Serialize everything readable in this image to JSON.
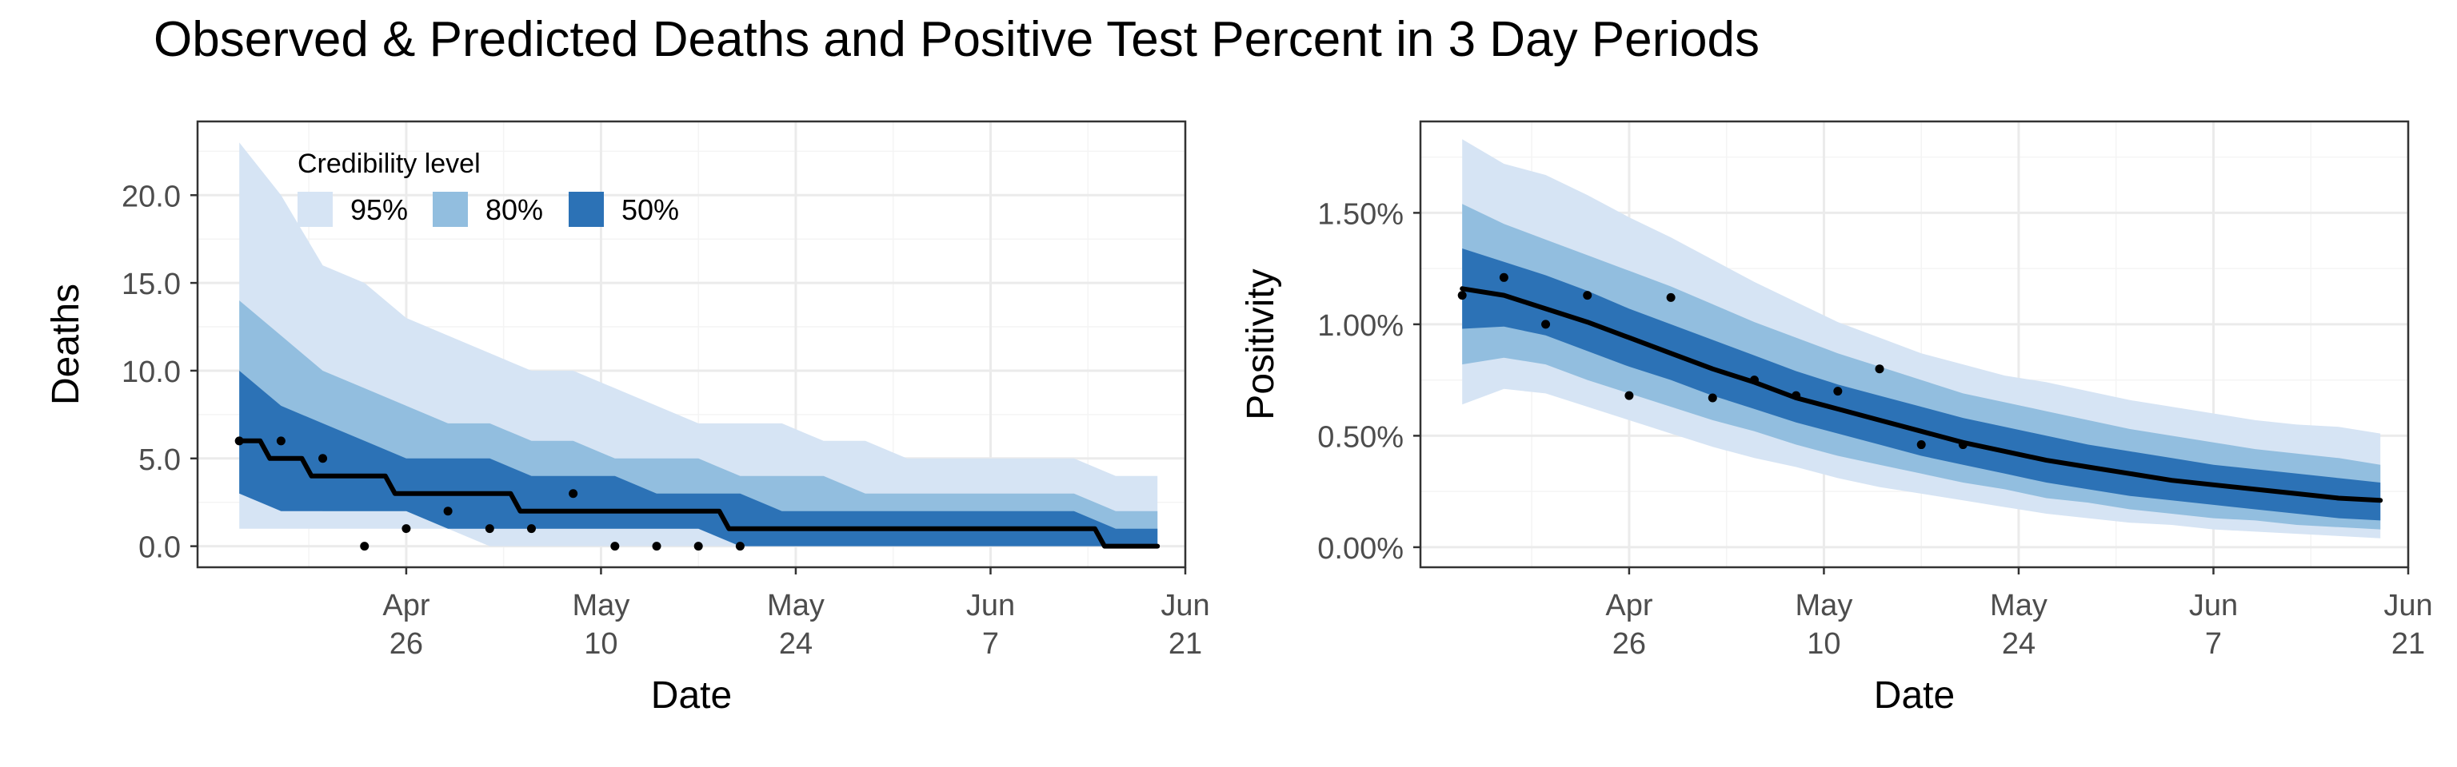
{
  "title": "Observed & Predicted Deaths and Positive Test Percent in 3 Day Periods",
  "colors": {
    "band95": "#d6e4f4",
    "band80": "#92bedf",
    "band50": "#2c72b6",
    "median": "#000000",
    "points": "#000000",
    "grid_major": "#ebebeb",
    "grid_minor": "#f4f4f4",
    "axis_text": "#4d4d4d"
  },
  "chart_data": [
    {
      "type": "area",
      "ylabel": "Deaths",
      "xlabel": "Date",
      "x_ticks": [
        {
          "date": "2020-04-26",
          "label_top": "Apr",
          "label_bottom": "26"
        },
        {
          "date": "2020-05-10",
          "label_top": "May",
          "label_bottom": "10"
        },
        {
          "date": "2020-05-24",
          "label_top": "May",
          "label_bottom": "24"
        },
        {
          "date": "2020-06-07",
          "label_top": "Jun",
          "label_bottom": "7"
        },
        {
          "date": "2020-06-21",
          "label_top": "Jun",
          "label_bottom": "21"
        }
      ],
      "xlim": [
        "2020-04-11",
        "2020-06-21"
      ],
      "ylim": [
        -1.2,
        24.2
      ],
      "y_ticks": [
        0,
        5,
        10,
        15,
        20
      ],
      "y_tick_labels": [
        "0.0",
        "5.0",
        "10.0",
        "15.0",
        "20.0"
      ],
      "legend": {
        "title": "Credibility level",
        "position": "top-left",
        "items": [
          {
            "label": "95%",
            "color_key": "band95"
          },
          {
            "label": "80%",
            "color_key": "band80"
          },
          {
            "label": "50%",
            "color_key": "band50"
          }
        ]
      },
      "bands_x": [
        "2020-04-14",
        "2020-04-17",
        "2020-04-20",
        "2020-04-23",
        "2020-04-26",
        "2020-04-29",
        "2020-05-02",
        "2020-05-05",
        "2020-05-08",
        "2020-05-11",
        "2020-05-14",
        "2020-05-17",
        "2020-05-20",
        "2020-05-23",
        "2020-05-26",
        "2020-05-29",
        "2020-06-01",
        "2020-06-04",
        "2020-06-07",
        "2020-06-10",
        "2020-06-13",
        "2020-06-16",
        "2020-06-19"
      ],
      "band95": {
        "lower": [
          1,
          1,
          1,
          1,
          1,
          1,
          0,
          0,
          0,
          0,
          0,
          0,
          0,
          0,
          0,
          0,
          0,
          0,
          0,
          0,
          0,
          0,
          0
        ],
        "upper": [
          23,
          20,
          16,
          15,
          13,
          12,
          11,
          10,
          10,
          9,
          8,
          7,
          7,
          7,
          6,
          6,
          5,
          5,
          5,
          5,
          5,
          4,
          4
        ]
      },
      "band80": {
        "lower": [
          3,
          3,
          2,
          2,
          2,
          1,
          1,
          1,
          1,
          1,
          1,
          1,
          0,
          0,
          0,
          0,
          0,
          0,
          0,
          0,
          0,
          0,
          0
        ],
        "upper": [
          14,
          12,
          10,
          9,
          8,
          7,
          7,
          6,
          6,
          5,
          5,
          5,
          4,
          4,
          4,
          3,
          3,
          3,
          3,
          3,
          3,
          2,
          2
        ]
      },
      "band50": {
        "lower": [
          3,
          2,
          2,
          2,
          2,
          1,
          1,
          1,
          1,
          1,
          1,
          1,
          0,
          0,
          0,
          0,
          0,
          0,
          0,
          0,
          0,
          0,
          0
        ],
        "upper": [
          10,
          8,
          7,
          6,
          5,
          5,
          5,
          4,
          4,
          4,
          3,
          3,
          3,
          2,
          2,
          2,
          2,
          2,
          2,
          2,
          2,
          1,
          1
        ]
      },
      "median": {
        "x": [
          "2020-04-14",
          "2020-04-17",
          "2020-04-20",
          "2020-04-23",
          "2020-04-26",
          "2020-04-29",
          "2020-05-02",
          "2020-05-05",
          "2020-05-08",
          "2020-05-11",
          "2020-05-14",
          "2020-05-17",
          "2020-05-20",
          "2020-05-23",
          "2020-05-26",
          "2020-05-29",
          "2020-06-01",
          "2020-06-04",
          "2020-06-07",
          "2020-06-10",
          "2020-06-13",
          "2020-06-16",
          "2020-06-19"
        ],
        "y": [
          6,
          5,
          4,
          4,
          3,
          3,
          3,
          2,
          2,
          2,
          2,
          2,
          1,
          1,
          1,
          1,
          1,
          1,
          1,
          1,
          1,
          0,
          0
        ],
        "step": true
      },
      "observed": {
        "x": [
          "2020-04-14",
          "2020-04-17",
          "2020-04-20",
          "2020-04-23",
          "2020-04-26",
          "2020-04-29",
          "2020-05-02",
          "2020-05-05",
          "2020-05-08",
          "2020-05-11",
          "2020-05-14",
          "2020-05-17",
          "2020-05-20"
        ],
        "y": [
          6,
          6,
          5,
          0,
          1,
          2,
          1,
          1,
          3,
          0,
          0,
          0,
          0
        ]
      }
    },
    {
      "type": "area",
      "ylabel": "Positivity",
      "xlabel": "Date",
      "x_ticks": [
        {
          "date": "2020-04-26",
          "label_top": "Apr",
          "label_bottom": "26"
        },
        {
          "date": "2020-05-10",
          "label_top": "May",
          "label_bottom": "10"
        },
        {
          "date": "2020-05-24",
          "label_top": "May",
          "label_bottom": "24"
        },
        {
          "date": "2020-06-07",
          "label_top": "Jun",
          "label_bottom": "7"
        },
        {
          "date": "2020-06-21",
          "label_top": "Jun",
          "label_bottom": "21"
        }
      ],
      "xlim": [
        "2020-04-11",
        "2020-06-21"
      ],
      "ylim": [
        -0.0009,
        0.0191
      ],
      "y_ticks": [
        0,
        0.005,
        0.01,
        0.015
      ],
      "y_tick_labels": [
        "0.00%",
        "0.50%",
        "1.00%",
        "1.50%"
      ],
      "bands_x": [
        "2020-04-14",
        "2020-04-17",
        "2020-04-20",
        "2020-04-23",
        "2020-04-26",
        "2020-04-29",
        "2020-05-02",
        "2020-05-05",
        "2020-05-08",
        "2020-05-11",
        "2020-05-14",
        "2020-05-17",
        "2020-05-20",
        "2020-05-23",
        "2020-05-26",
        "2020-05-29",
        "2020-06-01",
        "2020-06-04",
        "2020-06-07",
        "2020-06-10",
        "2020-06-13",
        "2020-06-16",
        "2020-06-19"
      ],
      "band95": {
        "lower": [
          0.0064,
          0.0071,
          0.0069,
          0.0063,
          0.0057,
          0.0051,
          0.0045,
          0.004,
          0.0036,
          0.0031,
          0.0027,
          0.0024,
          0.0021,
          0.0018,
          0.0015,
          0.0013,
          0.0011,
          0.001,
          0.0008,
          0.0007,
          0.0006,
          0.0005,
          0.0004
        ],
        "upper": [
          0.0183,
          0.0172,
          0.0167,
          0.0158,
          0.0148,
          0.0139,
          0.0129,
          0.0119,
          0.011,
          0.0101,
          0.0094,
          0.0087,
          0.0082,
          0.0077,
          0.0074,
          0.007,
          0.0066,
          0.0063,
          0.006,
          0.0057,
          0.0055,
          0.0054,
          0.0051
        ]
      },
      "band80": {
        "lower": [
          0.0082,
          0.0085,
          0.0082,
          0.0075,
          0.0069,
          0.0063,
          0.0057,
          0.0052,
          0.0046,
          0.0041,
          0.0037,
          0.0033,
          0.0029,
          0.0026,
          0.0022,
          0.002,
          0.0017,
          0.0015,
          0.0013,
          0.0012,
          0.001,
          0.0009,
          0.0008
        ],
        "upper": [
          0.0154,
          0.0145,
          0.0138,
          0.0131,
          0.0124,
          0.0117,
          0.0109,
          0.0101,
          0.0094,
          0.0087,
          0.0081,
          0.0075,
          0.0069,
          0.0065,
          0.0061,
          0.0057,
          0.0053,
          0.005,
          0.0047,
          0.0044,
          0.0042,
          0.004,
          0.0037
        ]
      },
      "band50": {
        "lower": [
          0.0098,
          0.0099,
          0.0095,
          0.0088,
          0.0081,
          0.0075,
          0.0068,
          0.0062,
          0.0056,
          0.0051,
          0.0046,
          0.0041,
          0.0037,
          0.0033,
          0.0029,
          0.0026,
          0.0023,
          0.0021,
          0.0019,
          0.0017,
          0.0015,
          0.0013,
          0.0012
        ],
        "upper": [
          0.0134,
          0.0128,
          0.0122,
          0.0115,
          0.0107,
          0.01,
          0.0093,
          0.0086,
          0.0079,
          0.0073,
          0.0068,
          0.0063,
          0.0058,
          0.0054,
          0.005,
          0.0046,
          0.0043,
          0.004,
          0.0037,
          0.0035,
          0.0033,
          0.0031,
          0.0029
        ]
      },
      "median": {
        "x": [
          "2020-04-14",
          "2020-04-17",
          "2020-04-20",
          "2020-04-23",
          "2020-04-26",
          "2020-04-29",
          "2020-05-02",
          "2020-05-05",
          "2020-05-08",
          "2020-05-11",
          "2020-05-14",
          "2020-05-17",
          "2020-05-20",
          "2020-05-23",
          "2020-05-26",
          "2020-05-29",
          "2020-06-01",
          "2020-06-04",
          "2020-06-07",
          "2020-06-10",
          "2020-06-13",
          "2020-06-16",
          "2020-06-19"
        ],
        "y": [
          0.0116,
          0.0113,
          0.0107,
          0.0101,
          0.0094,
          0.0087,
          0.008,
          0.0074,
          0.0067,
          0.0062,
          0.0057,
          0.0052,
          0.0047,
          0.0043,
          0.0039,
          0.0036,
          0.0033,
          0.003,
          0.0028,
          0.0026,
          0.0024,
          0.0022,
          0.0021
        ],
        "step": false
      },
      "observed": {
        "x": [
          "2020-04-14",
          "2020-04-17",
          "2020-04-20",
          "2020-04-23",
          "2020-04-26",
          "2020-04-29",
          "2020-05-02",
          "2020-05-05",
          "2020-05-08",
          "2020-05-11",
          "2020-05-14",
          "2020-05-17",
          "2020-05-20"
        ],
        "y": [
          0.0113,
          0.0121,
          0.01,
          0.0113,
          0.0068,
          0.0112,
          0.0067,
          0.0075,
          0.0068,
          0.007,
          0.008,
          0.0046,
          0.0046
        ]
      }
    }
  ]
}
